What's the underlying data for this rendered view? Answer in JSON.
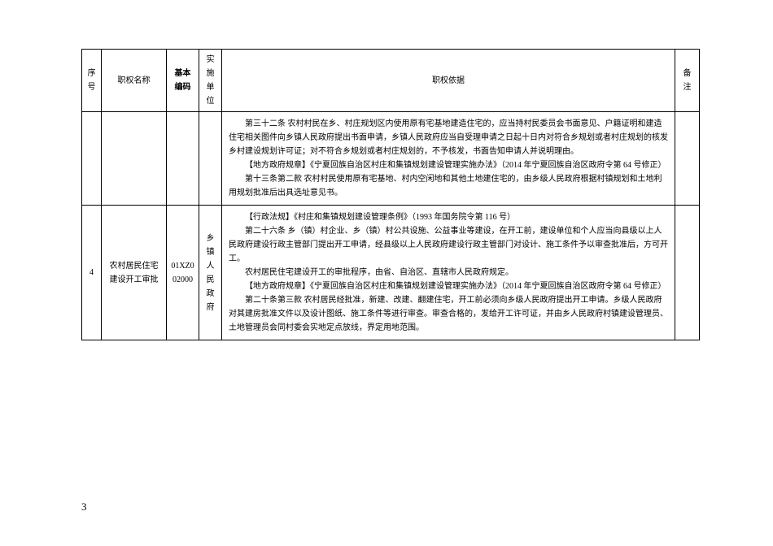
{
  "headers": {
    "seq": "序号",
    "name": "职权名称",
    "code": "基本编码",
    "unit": "实施单位",
    "basis": "职权依据",
    "note": "备注"
  },
  "row1": {
    "basis_l1": "第三十二条  农村村民在乡、村庄规划区内使用原有宅基地建造住宅的，应当持村民委员会书面意见、户籍证明和建造住宅相关图件向乡镇人民政府提出书面申请，乡镇人民政府应当自受理申请之日起十日内对符合乡规划或者村庄规划的核发乡村建设规划许可证；对不符合乡规划或者村庄规划的，不予核发，书面告知申请人并说明理由。",
    "basis_l2": "【地方政府规章】《宁夏回族自治区村庄和集镇规划建设管理实施办法》（2014 年宁夏回族自治区政府令第 64 号修正）",
    "basis_l3": "第十三条第二款  农村村民使用原有宅基地、村内空闲地和其他土地建住宅的，由乡级人民政府根据村镇规划和土地利用规划批准后出具选址意见书。"
  },
  "row2": {
    "seq": "4",
    "name": "农村居民住宅建设开工审批",
    "code1": "01XZ0",
    "code2": "02000",
    "unit": "乡镇人民政府",
    "basis_l1": "【行政法规】《村庄和集镇规划建设管理条例》（1993 年国务院令第 116 号）",
    "basis_l2": "第二十六条  乡（镇）村企业、乡（镇）村公共设施、公益事业等建设，在开工前，建设单位和个人应当向县级以上人民政府建设行政主管部门提出开工申请，经县级以上人民政府建设行政主管部门对设计、施工条件予以审查批准后，方可开工。",
    "basis_l3": "农村居民住宅建设开工的审批程序，由省、自治区、直辖市人民政府规定。",
    "basis_l4": "【地方政府规章】《宁夏回族自治区村庄和集镇规划建设管理实施办法》（2014 年宁夏回族自治区政府令第 64 号修正）",
    "basis_l5": "第二十条第三款  农村居民经批准，新建、改建、翻建住宅，开工前必须向乡级人民政府提出开工申请。乡级人民政府对其建房批准文件以及设计图纸、施工条件等进行审查。审查合格的，发给开工许可证，并由乡人民政府村镇建设管理员、土地管理员会同村委会实地定点放线，界定用地范围。"
  },
  "page_number": "3",
  "style": {
    "font_size_pt": 10,
    "line_height": 1.7,
    "text_color": "#000000",
    "border_color": "#000000",
    "background_color": "#ffffff"
  }
}
